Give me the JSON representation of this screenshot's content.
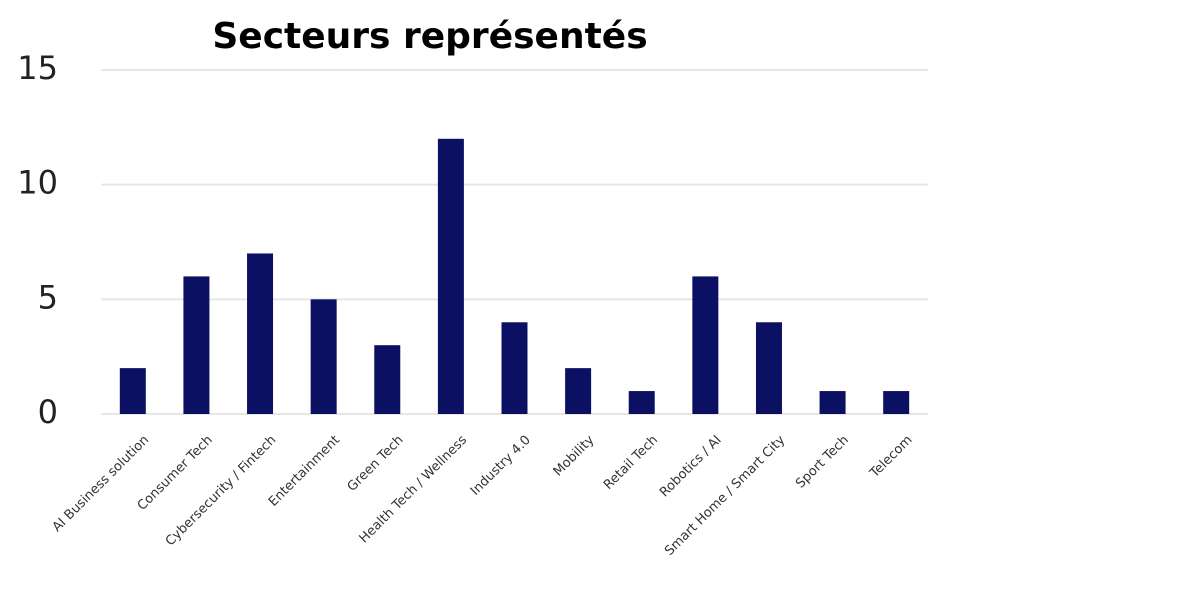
{
  "chart_data": {
    "type": "bar",
    "title": "Secteurs représentés",
    "categories": [
      "AI Business solution",
      "Consumer Tech",
      "Cybersecurity / Fintech",
      "Entertainment",
      "Green Tech",
      "Health Tech / Wellness",
      "Industry 4.0",
      "Mobility",
      "Retail Tech",
      "Robotics / AI",
      "Smart Home / Smart City",
      "Sport Tech",
      "Telecom"
    ],
    "values": [
      2,
      6,
      7,
      5,
      3,
      12,
      4,
      2,
      1,
      6,
      4,
      1,
      1
    ],
    "color": "#0b1063",
    "ylim": [
      0,
      15
    ],
    "yticks": [
      0,
      5,
      10,
      15
    ],
    "grid": true
  }
}
